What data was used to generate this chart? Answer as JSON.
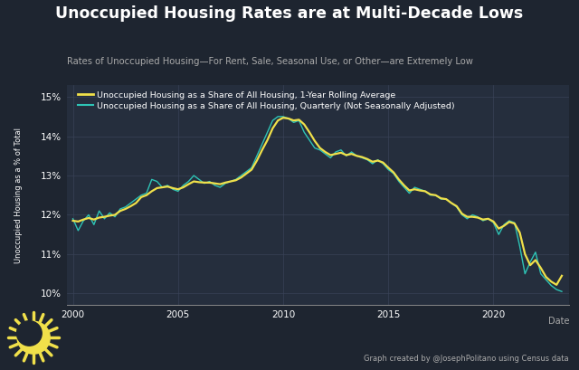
{
  "title": "Unoccupied Housing Rates are at Multi-Decade Lows",
  "subtitle": "Rates of Unoccupied Housing—For Rent, Sale, Seasonal Use, or Other—are Extremely Low",
  "ylabel": "Unoccupied Housing as a % of Total",
  "xlabel": "Date",
  "credit": "Graph created by @JosephPolitano using Census data",
  "bg_color": "#1e2530",
  "plot_bg_color": "#252e3d",
  "grid_color": "#3a4458",
  "text_color": "#ffffff",
  "subtext_color": "#aaaaaa",
  "line_quarterly_color": "#2ec4b6",
  "line_rolling_color": "#f0e04a",
  "legend_rolling": "Unoccupied Housing as a Share of All Housing, 1-Year Rolling Average",
  "legend_quarterly": "Unoccupied Housing as a Share of All Housing, Quarterly (Not Seasonally Adjusted)",
  "ylim": [
    9.7,
    15.3
  ],
  "yticks": [
    10,
    11,
    12,
    13,
    14,
    15
  ],
  "xticks": [
    2000,
    2005,
    2010,
    2015,
    2020
  ],
  "quarterly_dates": [
    2000.0,
    2000.25,
    2000.5,
    2000.75,
    2001.0,
    2001.25,
    2001.5,
    2001.75,
    2002.0,
    2002.25,
    2002.5,
    2002.75,
    2003.0,
    2003.25,
    2003.5,
    2003.75,
    2004.0,
    2004.25,
    2004.5,
    2004.75,
    2005.0,
    2005.25,
    2005.5,
    2005.75,
    2006.0,
    2006.25,
    2006.5,
    2006.75,
    2007.0,
    2007.25,
    2007.5,
    2007.75,
    2008.0,
    2008.25,
    2008.5,
    2008.75,
    2009.0,
    2009.25,
    2009.5,
    2009.75,
    2010.0,
    2010.25,
    2010.5,
    2010.75,
    2011.0,
    2011.25,
    2011.5,
    2011.75,
    2012.0,
    2012.25,
    2012.5,
    2012.75,
    2013.0,
    2013.25,
    2013.5,
    2013.75,
    2014.0,
    2014.25,
    2014.5,
    2014.75,
    2015.0,
    2015.25,
    2015.5,
    2015.75,
    2016.0,
    2016.25,
    2016.5,
    2016.75,
    2017.0,
    2017.25,
    2017.5,
    2017.75,
    2018.0,
    2018.25,
    2018.5,
    2018.75,
    2019.0,
    2019.25,
    2019.5,
    2019.75,
    2020.0,
    2020.25,
    2020.5,
    2020.75,
    2021.0,
    2021.25,
    2021.5,
    2021.75,
    2022.0,
    2022.25,
    2022.5,
    2022.75,
    2023.0,
    2023.25
  ],
  "quarterly_values": [
    11.9,
    11.6,
    11.85,
    12.0,
    11.75,
    12.1,
    11.9,
    12.05,
    11.95,
    12.15,
    12.2,
    12.3,
    12.4,
    12.5,
    12.55,
    12.9,
    12.85,
    12.7,
    12.75,
    12.65,
    12.6,
    12.75,
    12.85,
    13.0,
    12.9,
    12.8,
    12.85,
    12.75,
    12.7,
    12.8,
    12.85,
    12.9,
    13.0,
    13.1,
    13.2,
    13.5,
    13.8,
    14.1,
    14.4,
    14.5,
    14.5,
    14.45,
    14.35,
    14.4,
    14.1,
    13.9,
    13.7,
    13.65,
    13.55,
    13.45,
    13.6,
    13.65,
    13.5,
    13.6,
    13.5,
    13.45,
    13.4,
    13.3,
    13.4,
    13.3,
    13.15,
    13.05,
    12.85,
    12.7,
    12.55,
    12.7,
    12.65,
    12.6,
    12.5,
    12.5,
    12.4,
    12.4,
    12.3,
    12.2,
    12.0,
    11.9,
    12.0,
    11.95,
    11.85,
    11.9,
    11.8,
    11.5,
    11.75,
    11.85,
    11.8,
    11.2,
    10.5,
    10.8,
    11.05,
    10.5,
    10.35,
    10.2,
    10.1,
    10.05
  ],
  "rolling_dates": [
    2000.0,
    2000.25,
    2000.5,
    2000.75,
    2001.0,
    2001.25,
    2001.5,
    2001.75,
    2002.0,
    2002.25,
    2002.5,
    2002.75,
    2003.0,
    2003.25,
    2003.5,
    2003.75,
    2004.0,
    2004.25,
    2004.5,
    2004.75,
    2005.0,
    2005.25,
    2005.5,
    2005.75,
    2006.0,
    2006.25,
    2006.5,
    2006.75,
    2007.0,
    2007.25,
    2007.5,
    2007.75,
    2008.0,
    2008.25,
    2008.5,
    2008.75,
    2009.0,
    2009.25,
    2009.5,
    2009.75,
    2010.0,
    2010.25,
    2010.5,
    2010.75,
    2011.0,
    2011.25,
    2011.5,
    2011.75,
    2012.0,
    2012.25,
    2012.5,
    2012.75,
    2013.0,
    2013.25,
    2013.5,
    2013.75,
    2014.0,
    2014.25,
    2014.5,
    2014.75,
    2015.0,
    2015.25,
    2015.5,
    2015.75,
    2016.0,
    2016.25,
    2016.5,
    2016.75,
    2017.0,
    2017.25,
    2017.5,
    2017.75,
    2018.0,
    2018.25,
    2018.5,
    2018.75,
    2019.0,
    2019.25,
    2019.5,
    2019.75,
    2020.0,
    2020.25,
    2020.5,
    2020.75,
    2021.0,
    2021.25,
    2021.5,
    2021.75,
    2022.0,
    2022.25,
    2022.5,
    2022.75,
    2023.0,
    2023.25
  ],
  "rolling_values": [
    11.85,
    11.83,
    11.88,
    11.92,
    11.88,
    11.93,
    11.95,
    11.98,
    12.0,
    12.1,
    12.15,
    12.22,
    12.3,
    12.45,
    12.5,
    12.6,
    12.68,
    12.7,
    12.72,
    12.68,
    12.65,
    12.7,
    12.78,
    12.85,
    12.83,
    12.82,
    12.82,
    12.8,
    12.78,
    12.82,
    12.85,
    12.88,
    12.95,
    13.05,
    13.15,
    13.38,
    13.65,
    13.9,
    14.2,
    14.4,
    14.47,
    14.45,
    14.4,
    14.42,
    14.3,
    14.1,
    13.88,
    13.7,
    13.6,
    13.52,
    13.55,
    13.58,
    13.52,
    13.55,
    13.5,
    13.47,
    13.42,
    13.35,
    13.38,
    13.33,
    13.2,
    13.08,
    12.9,
    12.75,
    12.62,
    12.65,
    12.62,
    12.6,
    12.52,
    12.5,
    12.42,
    12.4,
    12.3,
    12.22,
    12.03,
    11.95,
    11.95,
    11.93,
    11.88,
    11.9,
    11.83,
    11.65,
    11.72,
    11.82,
    11.78,
    11.55,
    11.0,
    10.72,
    10.85,
    10.65,
    10.42,
    10.3,
    10.22,
    10.45
  ]
}
